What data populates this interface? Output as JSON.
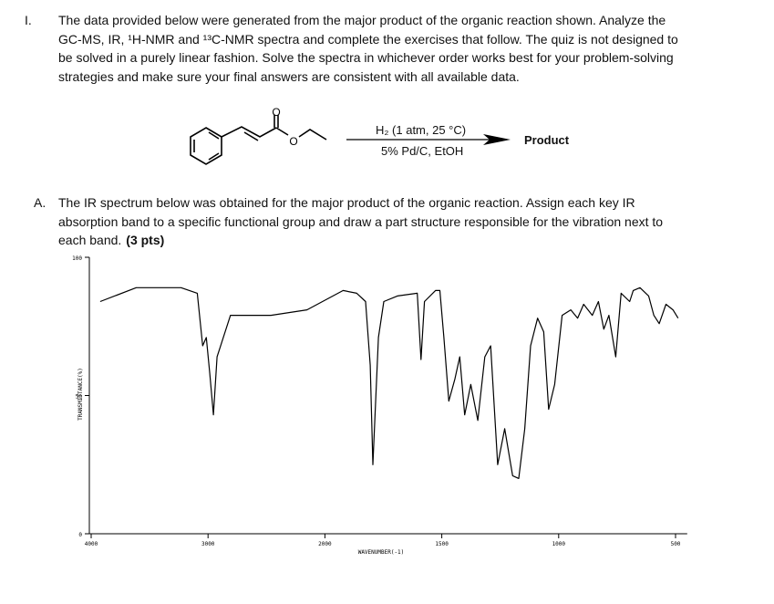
{
  "question": {
    "number": "I.",
    "lines": [
      "The data provided below were generated from the major product of the organic reaction shown.  Analyze the",
      "GC-MS, IR, ¹H-NMR and ¹³C-NMR spectra and complete the exercises that follow.  The quiz is not designed to",
      "be solved in a purely linear fashion.  Solve the spectra in whichever order works best for your problem-solving",
      "strategies and make sure your final answers are consistent with all available data."
    ]
  },
  "reaction": {
    "oxygen_label": "O",
    "conditions_top": "H₂ (1 atm, 25 °C)",
    "conditions_bottom": "5% Pd/C, EtOH",
    "product": "Product"
  },
  "part_a": {
    "letter": "A.",
    "lines": [
      "The IR spectrum below was obtained for the major product of the organic reaction.  Assign each key IR",
      "absorption band to a specific functional group and draw a part structure responsible for the vibration next to",
      "each band."
    ],
    "points": "(3 pts)"
  },
  "spectrum": {
    "type": "line",
    "x_label": "WAVENUMBER(-1)",
    "y_label": "TRANSMITTANCE(%)",
    "xlim": [
      4000,
      450
    ],
    "xticks": [
      4000,
      3000,
      2000,
      1500,
      1000,
      500
    ],
    "ylim": [
      0,
      100
    ],
    "yticks": [
      0,
      50,
      100
    ],
    "color": "#000000",
    "x": [
      3923,
      3615,
      3231,
      3092,
      3046,
      3015,
      2985,
      2954,
      2923,
      2808,
      2462,
      2154,
      1922,
      1864,
      1826,
      1806,
      1795,
      1771,
      1748,
      1690,
      1605,
      1589,
      1574,
      1527,
      1508,
      1491,
      1470,
      1444,
      1423,
      1402,
      1376,
      1346,
      1316,
      1291,
      1261,
      1231,
      1197,
      1171,
      1145,
      1120,
      1090,
      1064,
      1043,
      1017,
      985,
      948,
      919,
      893,
      856,
      830,
      807,
      785,
      756,
      733,
      696,
      681,
      652,
      615,
      593,
      570,
      541,
      511,
      489
    ],
    "values": [
      84,
      89,
      89,
      87,
      68,
      71,
      58,
      43,
      64,
      79,
      79,
      81,
      88,
      87,
      84,
      61,
      25,
      71,
      84,
      86,
      87,
      63,
      84,
      88,
      88,
      71,
      48,
      56,
      64,
      43,
      54,
      41,
      64,
      68,
      25,
      38,
      21,
      20,
      38,
      68,
      78,
      73,
      45,
      54,
      79,
      81,
      78,
      83,
      79,
      84,
      74,
      79,
      64,
      87,
      84,
      88,
      89,
      86,
      79,
      76,
      83,
      81,
      78
    ]
  }
}
